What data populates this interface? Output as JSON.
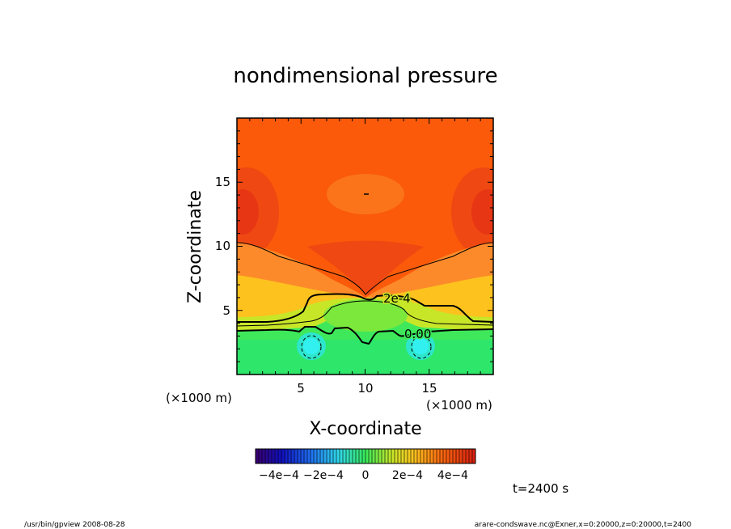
{
  "chart_data": {
    "type": "heatmap",
    "title": "nondimensional pressure",
    "xlabel": "X-coordinate",
    "ylabel": "Z-coordinate",
    "x_unit": "(×1000 m)",
    "z_unit": "(×1000 m)",
    "xlim": [
      0,
      20
    ],
    "ylim": [
      0,
      20
    ],
    "x_ticks": [
      5,
      10,
      15
    ],
    "z_ticks": [
      5,
      10,
      15
    ],
    "contour_labels": [
      "2e-4",
      "0.00"
    ],
    "colorbar": {
      "range": [
        -0.0005,
        0.0005
      ],
      "tick_labels": [
        "−4e−4",
        "−2e−4",
        "0",
        "2e−4",
        "4e−4"
      ],
      "tick_values": [
        -0.0004,
        -0.0002,
        0,
        0.0002,
        0.0004
      ]
    },
    "field_description": "red/orange aloft (≈2.5e-4 to 3.5e-4), yellow 4–7 km, green near surface (≈0 to −1e-4), cyan minima at x≈6 and x≈14 near z≈2",
    "time_label": "t=2400 s",
    "footer_left": "/usr/bin/gpview   2008-08-28",
    "footer_right": "arare-condswave.nc@Exner,x=0:20000,z=0:20000,t=2400"
  }
}
